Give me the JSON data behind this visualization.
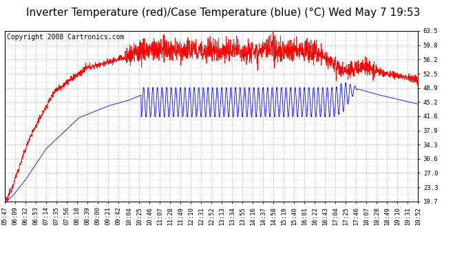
{
  "title": "Inverter Temperature (red)/Case Temperature (blue) (°C) Wed May 7 19:53",
  "copyright_text": "Copyright 2008 Cartronics.com",
  "yticks": [
    19.7,
    23.3,
    27.0,
    30.6,
    34.3,
    37.9,
    41.6,
    45.2,
    48.9,
    52.5,
    56.2,
    59.8,
    63.5
  ],
  "xtick_labels": [
    "05:47",
    "06:09",
    "06:32",
    "06:53",
    "07:14",
    "07:35",
    "07:56",
    "08:18",
    "08:39",
    "09:00",
    "09:21",
    "09:42",
    "10:04",
    "10:25",
    "10:46",
    "11:07",
    "11:28",
    "11:49",
    "12:10",
    "12:31",
    "12:52",
    "13:13",
    "13:34",
    "13:55",
    "14:16",
    "14:37",
    "14:58",
    "15:19",
    "15:40",
    "16:01",
    "16:22",
    "16:43",
    "17:04",
    "17:25",
    "17:46",
    "18:07",
    "18:28",
    "18:49",
    "19:10",
    "19:31",
    "19:52"
  ],
  "ymin": 19.7,
  "ymax": 63.5,
  "bg_color": "#ffffff",
  "plot_bg_color": "#ffffff",
  "grid_color": "#c0c0c0",
  "red_color": "#ff0000",
  "blue_color": "#0000ff",
  "title_fontsize": 11,
  "tick_fontsize": 6.5,
  "copyright_fontsize": 7
}
